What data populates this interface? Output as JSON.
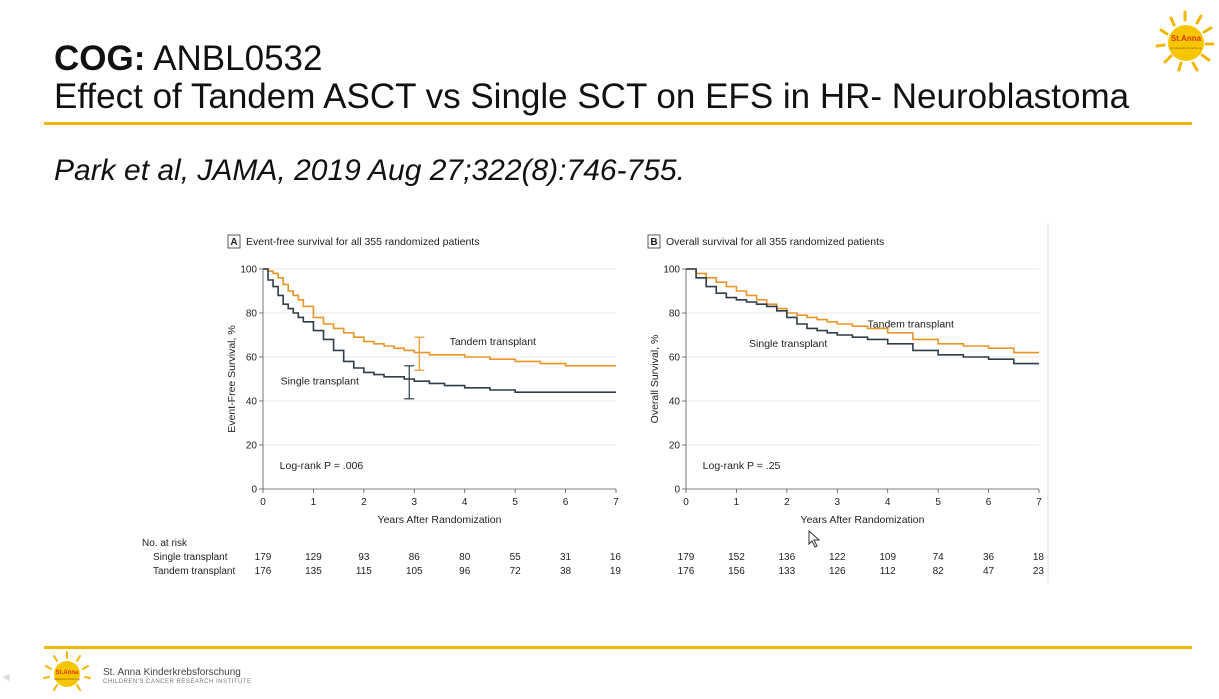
{
  "slide": {
    "title_bold": "COG:",
    "title_rest": "ANBL0532",
    "subtitle": "Effect of Tandem ASCT vs Single SCT  on EFS in HR- Neuroblastoma",
    "citation": "Park et al, JAMA,  2019 Aug 27;322(8):746-755.",
    "logo_text": "St.Anna",
    "logo_subtext": "Kinderkrebs Forschung",
    "footer_name": "St. Anna Kinderkrebsforschung",
    "footer_sub": "CHILDREN'S CANCER RESEARCH INSTITUTE",
    "accent_color": "#f2b705"
  },
  "chart_data": [
    {
      "type": "line",
      "panel": "A",
      "title": "Event-free survival for all 355 randomized patients",
      "xlabel": "Years After Randomization",
      "ylabel": "Event-Free Survival, %",
      "xlim": [
        0,
        7
      ],
      "ylim": [
        0,
        100
      ],
      "xticks": [
        0,
        1,
        2,
        3,
        4,
        5,
        6,
        7
      ],
      "yticks": [
        0,
        20,
        40,
        60,
        80,
        100
      ],
      "annotation": "Log-rank P = .006",
      "series": [
        {
          "name": "Tandem transplant",
          "color": "#e8962a",
          "x": [
            0,
            0.1,
            0.2,
            0.3,
            0.4,
            0.5,
            0.6,
            0.7,
            0.8,
            1.0,
            1.2,
            1.4,
            1.6,
            1.8,
            2.0,
            2.2,
            2.4,
            2.6,
            2.8,
            3.0,
            3.3,
            3.6,
            4.0,
            4.5,
            5.0,
            5.5,
            6.0,
            6.5,
            7.0
          ],
          "y": [
            100,
            99,
            98,
            96,
            93,
            90,
            88,
            86,
            83,
            78,
            75,
            73,
            71,
            69,
            67,
            66,
            65,
            64,
            63,
            62,
            61,
            61,
            60,
            59,
            58,
            57,
            56,
            56,
            56
          ]
        },
        {
          "name": "Single transplant",
          "color": "#2f3d47",
          "x": [
            0,
            0.1,
            0.2,
            0.3,
            0.4,
            0.5,
            0.6,
            0.7,
            0.8,
            1.0,
            1.2,
            1.4,
            1.6,
            1.8,
            2.0,
            2.2,
            2.4,
            2.6,
            2.8,
            3.0,
            3.3,
            3.6,
            4.0,
            4.5,
            5.0,
            5.5,
            6.0,
            6.5,
            7.0
          ],
          "y": [
            100,
            95,
            92,
            88,
            84,
            82,
            80,
            78,
            76,
            72,
            68,
            63,
            58,
            55,
            53,
            52,
            51,
            51,
            50,
            49,
            48,
            47,
            46,
            45,
            44,
            44,
            44,
            44,
            44
          ]
        }
      ],
      "error_bars": [
        {
          "series": "Tandem transplant",
          "x": 3.1,
          "low": 54,
          "high": 69
        },
        {
          "series": "Single transplant",
          "x": 2.9,
          "low": 41,
          "high": 56
        }
      ],
      "risk_table": {
        "header": "No. at risk",
        "rows": [
          {
            "label": "Single transplant",
            "values": [
              "179",
              "129",
              "93",
              "86",
              "80",
              "55",
              "31",
              "16"
            ]
          },
          {
            "label": "Tandem transplant",
            "values": [
              "176",
              "135",
              "115",
              "105",
              "96",
              "72",
              "38",
              "19"
            ]
          }
        ]
      }
    },
    {
      "type": "line",
      "panel": "B",
      "title": "Overall survival for all 355 randomized patients",
      "xlabel": "Years After Randomization",
      "ylabel": "Overall Survival, %",
      "xlim": [
        0,
        7
      ],
      "ylim": [
        0,
        100
      ],
      "xticks": [
        0,
        1,
        2,
        3,
        4,
        5,
        6,
        7
      ],
      "yticks": [
        0,
        20,
        40,
        60,
        80,
        100
      ],
      "annotation": "Log-rank P = .25",
      "series": [
        {
          "name": "Tandem transplant",
          "color": "#e8962a",
          "x": [
            0,
            0.2,
            0.4,
            0.6,
            0.8,
            1.0,
            1.2,
            1.4,
            1.6,
            1.8,
            2.0,
            2.2,
            2.4,
            2.6,
            2.8,
            3.0,
            3.3,
            3.6,
            4.0,
            4.5,
            5.0,
            5.5,
            6.0,
            6.5,
            7.0
          ],
          "y": [
            100,
            98,
            96,
            94,
            92,
            90,
            88,
            86,
            84,
            82,
            80,
            79,
            78,
            77,
            76,
            75,
            74,
            73,
            71,
            68,
            66,
            65,
            64,
            62,
            62
          ]
        },
        {
          "name": "Single transplant",
          "color": "#2f3d47",
          "x": [
            0,
            0.2,
            0.4,
            0.6,
            0.8,
            1.0,
            1.2,
            1.4,
            1.6,
            1.8,
            2.0,
            2.2,
            2.4,
            2.6,
            2.8,
            3.0,
            3.3,
            3.6,
            4.0,
            4.5,
            5.0,
            5.5,
            6.0,
            6.5,
            7.0
          ],
          "y": [
            100,
            96,
            92,
            89,
            87,
            86,
            85,
            84,
            83,
            81,
            78,
            75,
            73,
            72,
            71,
            70,
            69,
            68,
            66,
            63,
            61,
            60,
            59,
            57,
            57
          ]
        }
      ],
      "risk_table": {
        "header": "",
        "rows": [
          {
            "label": "Single transplant",
            "values": [
              "179",
              "152",
              "136",
              "122",
              "109",
              "74",
              "36",
              "18"
            ]
          },
          {
            "label": "Tandem transplant",
            "values": [
              "176",
              "156",
              "133",
              "126",
              "112",
              "82",
              "47",
              "23"
            ]
          }
        ]
      }
    }
  ]
}
